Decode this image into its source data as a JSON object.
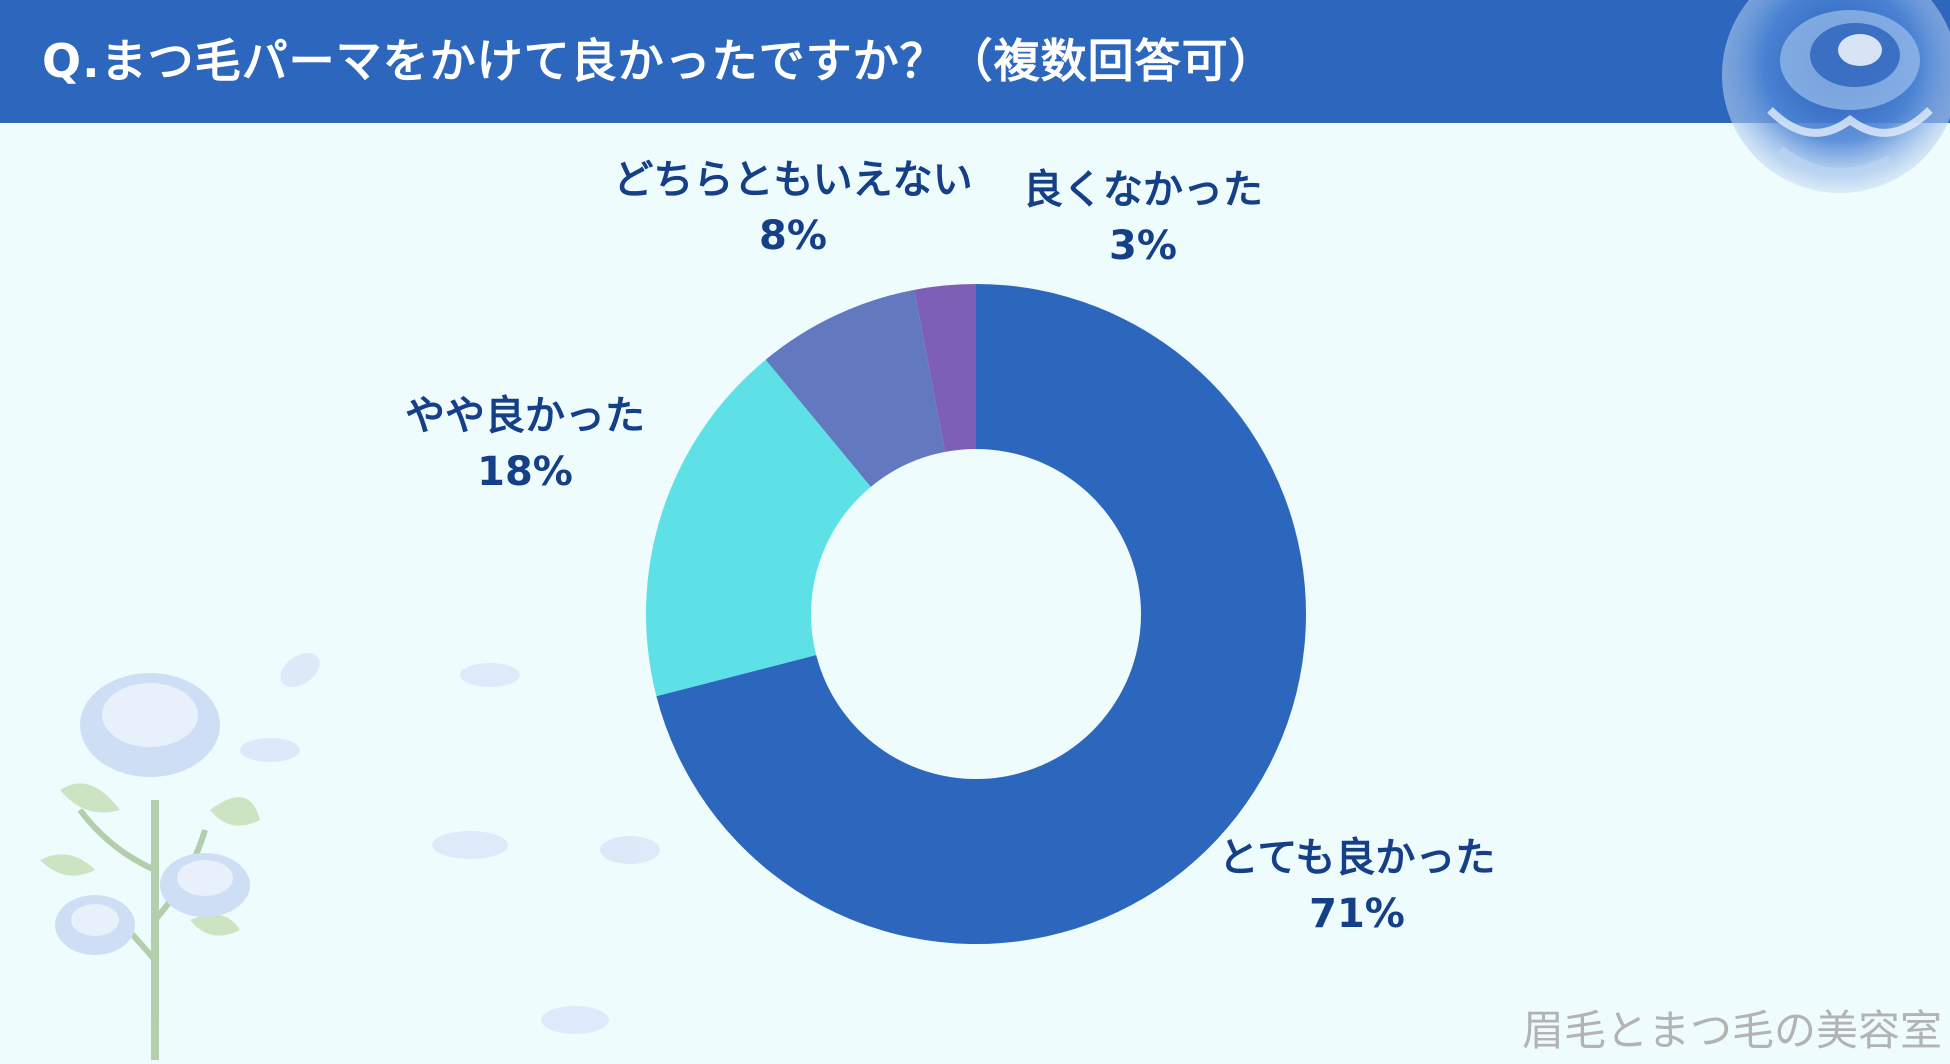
{
  "header": {
    "title": "Q.まつ毛パーマをかけて良かったですか？（複数回答可）"
  },
  "chart_data": {
    "type": "pie",
    "subtype": "donut",
    "title": "Q.まつ毛パーマをかけて良かったですか？（複数回答可）",
    "slices": [
      {
        "label": "とても良かった",
        "value": 71,
        "display": "71%",
        "color": "#2d67bd"
      },
      {
        "label": "やや良かった",
        "value": 18,
        "display": "18%",
        "color": "#5ee1e6"
      },
      {
        "label": "どちらともいえない",
        "value": 8,
        "display": "8%",
        "color": "#6379bf"
      },
      {
        "label": "良くなかった",
        "value": 3,
        "display": "3%",
        "color": "#7e5fb8"
      }
    ]
  },
  "watermark": "眉毛とまつ毛の美容室",
  "colors": {
    "header": "#2d67bd",
    "background": "#eefcfd",
    "label_text": "#153f86"
  },
  "decorations": {
    "top_right": "blue-rose-icon",
    "bottom_left": "blue-rose-branch-icon"
  }
}
